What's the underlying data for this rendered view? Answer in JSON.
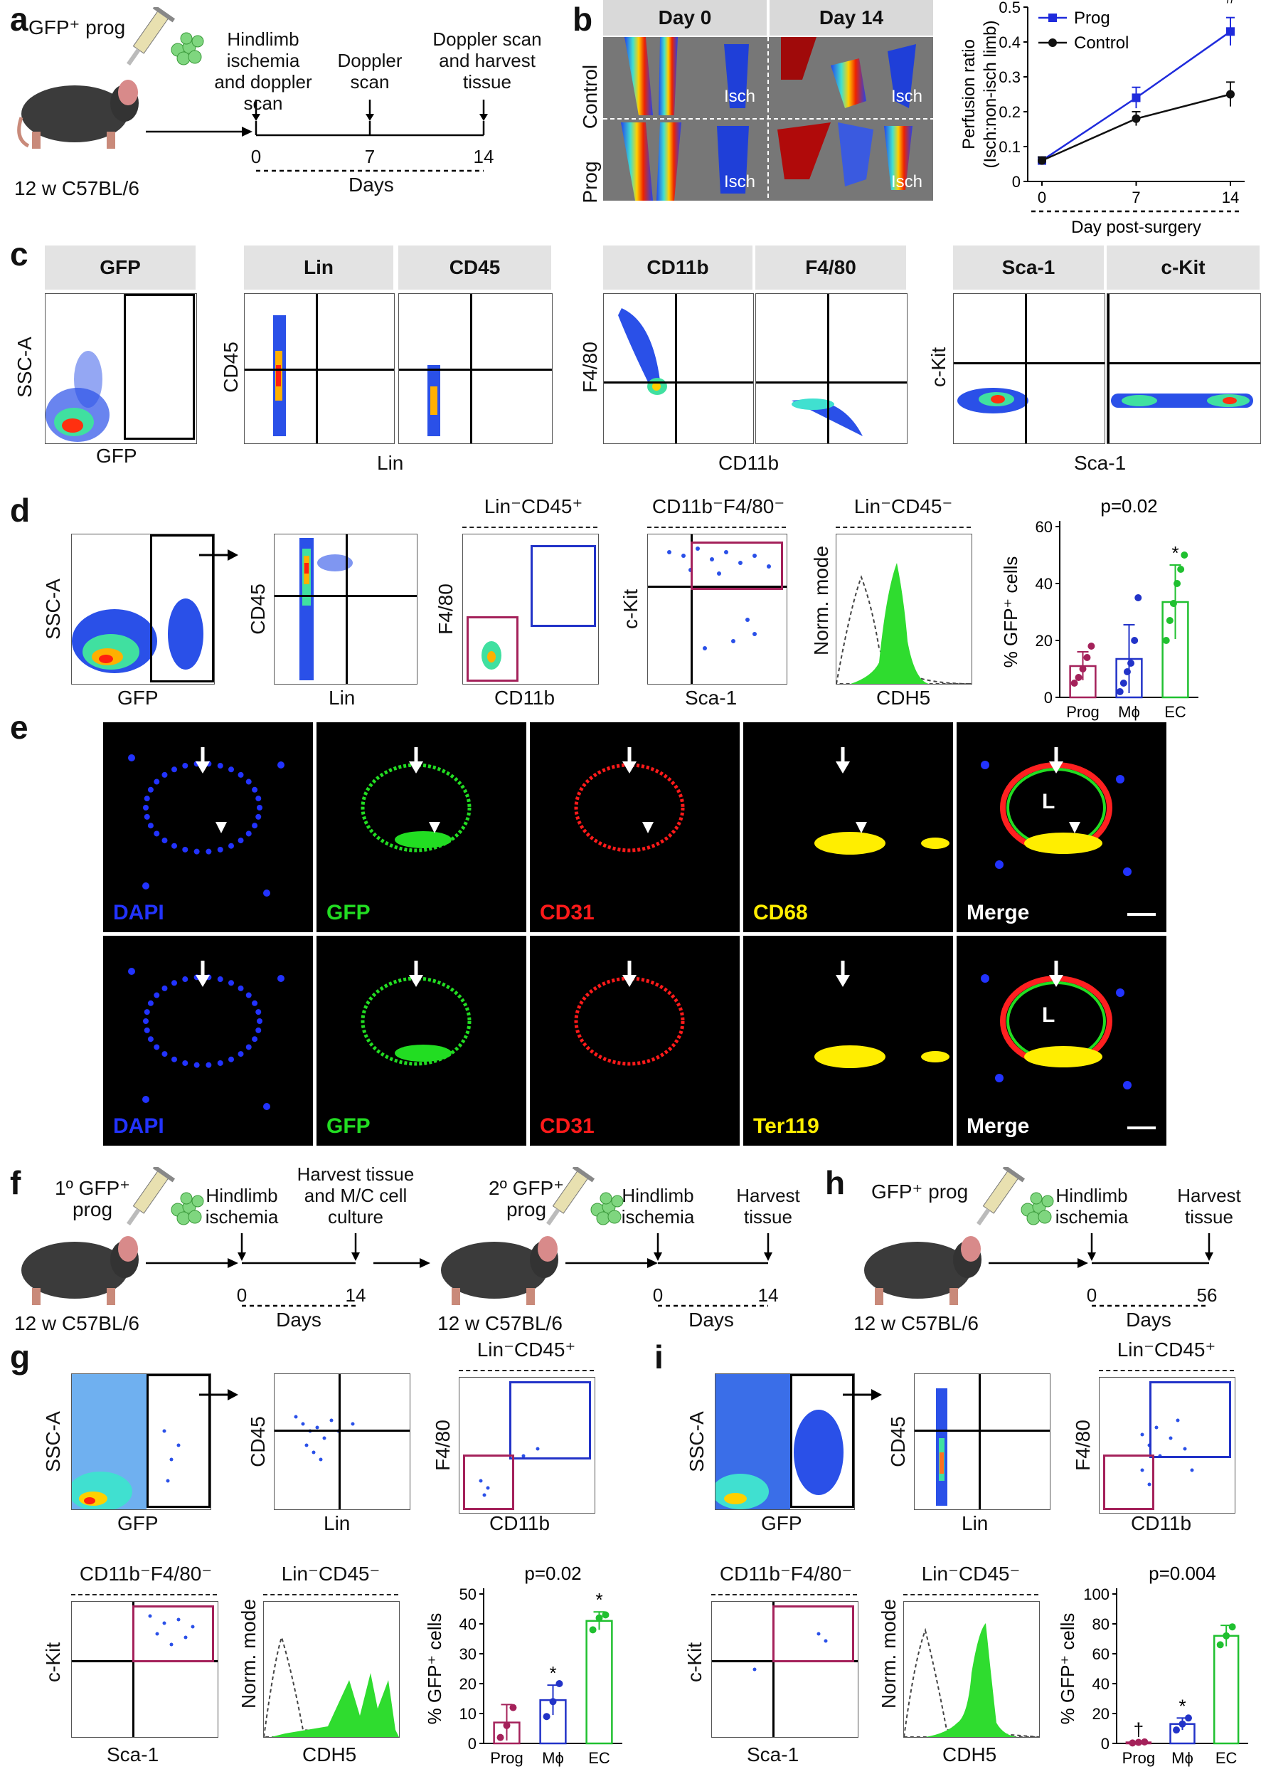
{
  "panels": {
    "a": {
      "label": "a",
      "injection": "GFP⁺ prog",
      "strain": "12 w C57BL/6",
      "events": [
        "Hindlimb ischemia and doppler scan",
        "Doppler scan",
        "Doppler scan and harvest tissue"
      ],
      "ticks": [
        "0",
        "7",
        "14"
      ],
      "axis": "Days"
    },
    "b": {
      "label": "b",
      "col_headers": [
        "Day 0",
        "Day 14"
      ],
      "row_labels": [
        "Control",
        "Prog"
      ],
      "isch": "Isch",
      "chart": {
        "ylabel": "Perfusion ratio",
        "ylabel2": "(Isch:non-isch limb)",
        "xlabel": "Day post-surgery",
        "annotation": "#"
      }
    },
    "c": {
      "label": "c",
      "headers": [
        "GFP",
        "Lin",
        "CD45",
        "CD11b",
        "F4/80",
        "Sca-1",
        "c-Kit"
      ],
      "xlabels": [
        "GFP",
        "Lin",
        "CD11b",
        "Sca-1"
      ],
      "ylabels": [
        "SSC-A",
        "CD45",
        "F4/80",
        "c-Kit"
      ]
    },
    "d": {
      "label": "d",
      "xlabels": [
        "GFP",
        "Lin",
        "CD11b",
        "Sca-1",
        "CDH5"
      ],
      "ylabels": [
        "SSC-A",
        "CD45",
        "F4/80",
        "c-Kit",
        "Norm. mode"
      ],
      "titles": [
        "Lin⁻CD45⁺",
        "CD11b⁻F4/80⁻",
        "Lin⁻CD45⁻"
      ]
    },
    "e": {
      "label": "e",
      "row1": [
        "DAPI",
        "GFP",
        "CD31",
        "CD68",
        "Merge"
      ],
      "row2": [
        "DAPI",
        "GFP",
        "CD31",
        "Ter119",
        "Merge"
      ],
      "lumen": "L"
    },
    "f": {
      "label": "f",
      "injection1": "1º GFP⁺ prog",
      "injection2": "2º GFP⁺ prog",
      "strain": "12 w C57BL/6",
      "events1": [
        "Hindlimb ischemia",
        "Harvest tissue and M/C cell culture"
      ],
      "events2": [
        "Hindlimb ischemia",
        "Harvest tissue"
      ],
      "ticks": [
        "0",
        "14"
      ],
      "axis": "Days"
    },
    "g": {
      "label": "g",
      "xlabels": [
        "GFP",
        "Lin",
        "CD11b",
        "Sca-1",
        "CDH5"
      ],
      "ylabels": [
        "SSC-A",
        "CD45",
        "F4/80",
        "c-Kit",
        "Norm. mode"
      ],
      "titles": [
        "Lin⁻CD45⁺",
        "CD11b⁻F4/80⁻",
        "Lin⁻CD45⁻"
      ]
    },
    "h": {
      "label": "h",
      "injection": "GFP⁺ prog",
      "strain": "12 w C57BL/6",
      "events": [
        "Hindlimb ischemia",
        "Harvest tissue"
      ],
      "ticks": [
        "0",
        "56"
      ],
      "axis": "Days"
    },
    "i": {
      "label": "i",
      "xlabels": [
        "GFP",
        "Lin",
        "CD11b",
        "Sca-1",
        "CDH5"
      ],
      "ylabels": [
        "SSC-A",
        "CD45",
        "F4/80",
        "c-Kit",
        "Norm. mode"
      ],
      "titles": [
        "Lin⁻CD45⁺",
        "CD11b⁻F4/80⁻",
        "Lin⁻CD45⁻"
      ]
    }
  },
  "chart_data": [
    {
      "id": "b",
      "type": "line",
      "x": [
        0,
        7,
        14
      ],
      "ylim": [
        0,
        0.5
      ],
      "yticks": [
        0,
        0.1,
        0.2,
        0.3,
        0.4,
        0.5
      ],
      "legend": "top-left",
      "series": [
        {
          "name": "Prog",
          "values": [
            0.06,
            0.24,
            0.43
          ],
          "err": [
            0.01,
            0.03,
            0.04
          ],
          "color": "#1f2bdc"
        },
        {
          "name": "Control",
          "values": [
            0.06,
            0.18,
            0.25
          ],
          "err": [
            0.01,
            0.02,
            0.035
          ],
          "color": "#111111"
        }
      ],
      "ylabel": "Perfusion ratio",
      "xlabel": "Day post-surgery"
    },
    {
      "id": "d",
      "type": "bar",
      "categories": [
        "Prog",
        "Mϕ",
        "EC"
      ],
      "values": [
        11,
        13.5,
        33.5
      ],
      "err": [
        5,
        12,
        13
      ],
      "points": [
        [
          5,
          7,
          10,
          14,
          18
        ],
        [
          2,
          5,
          9,
          12,
          20,
          35
        ],
        [
          20,
          27,
          33,
          40,
          45,
          50
        ]
      ],
      "colors": [
        "#a4215a",
        "#2233c8",
        "#20c030"
      ],
      "ylim": [
        0,
        60
      ],
      "yticks": [
        0,
        20,
        40,
        60
      ],
      "ylabel": "% GFP⁺ cells",
      "pvalue": "p=0.02",
      "stars": [
        "",
        "",
        "*"
      ]
    },
    {
      "id": "g",
      "type": "bar",
      "categories": [
        "Prog",
        "Mϕ",
        "EC"
      ],
      "values": [
        7,
        14.5,
        41
      ],
      "err": [
        6,
        5,
        3
      ],
      "points": [
        [
          2,
          6,
          12
        ],
        [
          9,
          14,
          20
        ],
        [
          38,
          42,
          43
        ]
      ],
      "colors": [
        "#a4215a",
        "#2233c8",
        "#20c030"
      ],
      "ylim": [
        0,
        50
      ],
      "yticks": [
        0,
        10,
        20,
        30,
        40,
        50
      ],
      "ylabel": "% GFP⁺ cells",
      "pvalue": "p=0.02",
      "stars": [
        "",
        "*",
        "*"
      ]
    },
    {
      "id": "i",
      "type": "bar",
      "categories": [
        "Prog",
        "Mϕ",
        "EC"
      ],
      "values": [
        0.7,
        13,
        72
      ],
      "err": [
        0.5,
        4,
        7
      ],
      "points": [
        [
          0.3,
          0.7,
          1
        ],
        [
          9,
          13,
          17
        ],
        [
          66,
          72,
          78
        ]
      ],
      "colors": [
        "#a4215a",
        "#2233c8",
        "#20c030"
      ],
      "ylim": [
        0,
        100
      ],
      "yticks": [
        0,
        20,
        40,
        60,
        80,
        100
      ],
      "ylabel": "% GFP⁺ cells",
      "pvalue": "p=0.004",
      "stars": [
        "†",
        "*",
        ""
      ]
    }
  ]
}
